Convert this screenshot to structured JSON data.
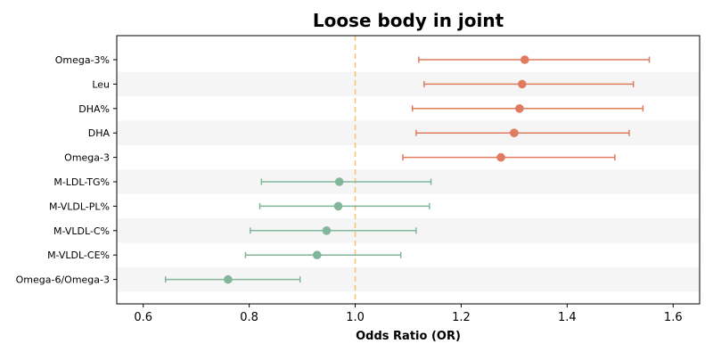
{
  "chart_data": {
    "type": "forest",
    "title": "Loose body in joint",
    "xlabel": "Odds Ratio (OR)",
    "xlim": [
      0.55,
      1.65
    ],
    "xticks": [
      "0.6",
      "0.8",
      "1.0",
      "1.2",
      "1.4",
      "1.6"
    ],
    "reference_line": 1.0,
    "colors": {
      "risk": "#e07b5f",
      "protective": "#82b69b",
      "reference": "#f5c47a",
      "band": "#f5f5f5"
    },
    "rows": [
      {
        "label": "Omega-3%",
        "or": 1.32,
        "lower": 1.12,
        "upper": 1.555
      },
      {
        "label": "Leu",
        "or": 1.315,
        "lower": 1.13,
        "upper": 1.525
      },
      {
        "label": "DHA%",
        "or": 1.31,
        "lower": 1.108,
        "upper": 1.543
      },
      {
        "label": "DHA",
        "or": 1.3,
        "lower": 1.115,
        "upper": 1.517
      },
      {
        "label": "Omega-3",
        "or": 1.275,
        "lower": 1.09,
        "upper": 1.49
      },
      {
        "label": "M-LDL-TG%",
        "or": 0.97,
        "lower": 0.823,
        "upper": 1.143
      },
      {
        "label": "M-VLDL-PL%",
        "or": 0.968,
        "lower": 0.82,
        "upper": 1.14
      },
      {
        "label": "M-VLDL-C%",
        "or": 0.946,
        "lower": 0.802,
        "upper": 1.115
      },
      {
        "label": "M-VLDL-CE%",
        "or": 0.928,
        "lower": 0.793,
        "upper": 1.086
      },
      {
        "label": "Omega-6/Omega-3",
        "or": 0.76,
        "lower": 0.642,
        "upper": 0.896
      }
    ]
  }
}
